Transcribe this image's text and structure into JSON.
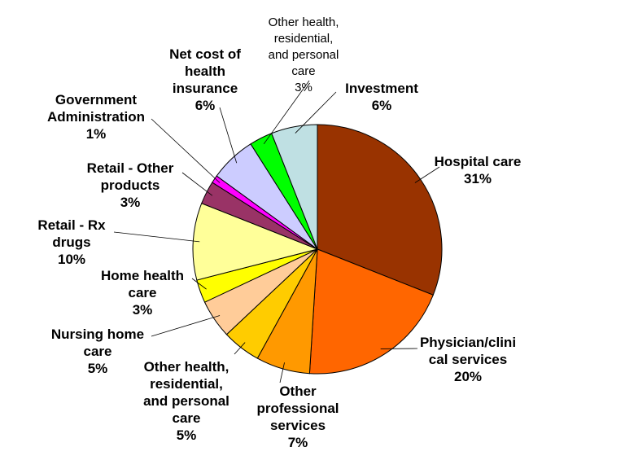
{
  "chart_data": {
    "type": "pie",
    "title": "",
    "slices": [
      {
        "name": "Hospital care",
        "label_lines": [
          "Hospital care"
        ],
        "pct_label": "31%",
        "value": 31,
        "color": "#993300"
      },
      {
        "name": "Physician/clinical services",
        "label_lines": [
          "Physician/clini",
          "cal services"
        ],
        "pct_label": "20%",
        "value": 20,
        "color": "#FF6600"
      },
      {
        "name": "Other professional services",
        "label_lines": [
          "Other",
          "professional",
          "services"
        ],
        "pct_label": "7%",
        "value": 7,
        "color": "#FF9900"
      },
      {
        "name": "Other health, residential, and personal care",
        "label_lines": [
          "Other health,",
          "residential,",
          "and personal",
          "care"
        ],
        "pct_label": "5%",
        "value": 5,
        "color": "#FFCC00"
      },
      {
        "name": "Nursing home care",
        "label_lines": [
          "Nursing home",
          "care"
        ],
        "pct_label": "5%",
        "value": 5,
        "color": "#FFCC99"
      },
      {
        "name": "Home health care",
        "label_lines": [
          "Home health",
          "care"
        ],
        "pct_label": "3%",
        "value": 3,
        "color": "#FFFF00"
      },
      {
        "name": "Retail - Rx drugs",
        "label_lines": [
          "Retail - Rx",
          "drugs"
        ],
        "pct_label": "10%",
        "value": 10,
        "color": "#FFFF99"
      },
      {
        "name": "Retail - Other products",
        "label_lines": [
          "Retail - Other",
          "products"
        ],
        "pct_label": "3%",
        "value": 3,
        "color": "#993366"
      },
      {
        "name": "Government Administration",
        "label_lines": [
          "Government",
          "Administration"
        ],
        "pct_label": "1%",
        "value": 1,
        "color": "#FF00FF"
      },
      {
        "name": "Net cost of health insurance",
        "label_lines": [
          "Net cost of",
          "health",
          "insurance"
        ],
        "pct_label": "6%",
        "value": 6,
        "color": "#CCCCFF"
      },
      {
        "name": "Other health, residential, and personal care",
        "label_lines": [
          "Other health,",
          "residential,",
          "and personal",
          "care"
        ],
        "pct_label": "3%",
        "value": 3,
        "color": "#00FF00"
      },
      {
        "name": "Investment",
        "label_lines": [
          "Investment"
        ],
        "pct_label": "6%",
        "value": 6,
        "color": "#BFE0E3"
      }
    ]
  }
}
